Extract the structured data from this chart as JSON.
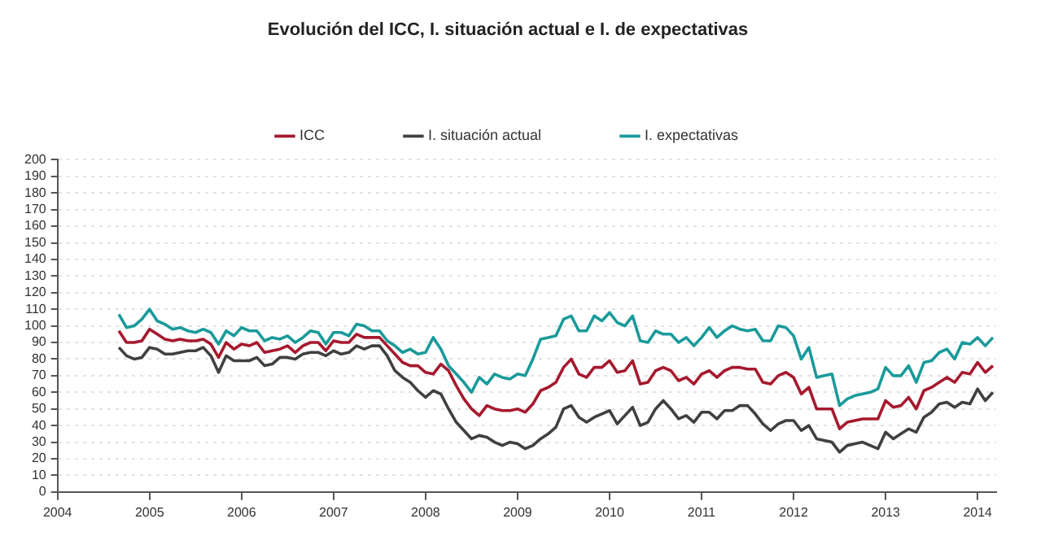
{
  "chart_data": {
    "type": "line",
    "title": "Evolución del ICC, I. situación actual e I. de expectativas",
    "x": [
      "2004-09",
      "2004-10",
      "2004-11",
      "2004-12",
      "2005-01",
      "2005-02",
      "2005-03",
      "2005-04",
      "2005-05",
      "2005-06",
      "2005-07",
      "2005-08",
      "2005-09",
      "2005-10",
      "2005-11",
      "2005-12",
      "2006-01",
      "2006-02",
      "2006-03",
      "2006-04",
      "2006-05",
      "2006-06",
      "2006-07",
      "2006-08",
      "2006-09",
      "2006-10",
      "2006-11",
      "2006-12",
      "2007-01",
      "2007-02",
      "2007-03",
      "2007-04",
      "2007-05",
      "2007-06",
      "2007-07",
      "2007-08",
      "2007-09",
      "2007-10",
      "2007-11",
      "2007-12",
      "2008-01",
      "2008-02",
      "2008-03",
      "2008-04",
      "2008-05",
      "2008-06",
      "2008-07",
      "2008-08",
      "2008-09",
      "2008-10",
      "2008-11",
      "2008-12",
      "2009-01",
      "2009-02",
      "2009-03",
      "2009-04",
      "2009-05",
      "2009-06",
      "2009-07",
      "2009-08",
      "2009-09",
      "2009-10",
      "2009-11",
      "2009-12",
      "2010-01",
      "2010-02",
      "2010-03",
      "2010-04",
      "2010-05",
      "2010-06",
      "2010-07",
      "2010-08",
      "2010-09",
      "2010-10",
      "2010-11",
      "2010-12",
      "2011-01",
      "2011-02",
      "2011-03",
      "2011-04",
      "2011-05",
      "2011-06",
      "2011-07",
      "2011-08",
      "2011-09",
      "2011-10",
      "2011-11",
      "2011-12",
      "2012-01",
      "2012-02",
      "2012-03",
      "2012-04",
      "2012-05",
      "2012-06",
      "2012-07",
      "2012-08",
      "2012-09",
      "2012-10",
      "2012-11",
      "2012-12",
      "2013-01",
      "2013-02",
      "2013-03",
      "2013-04",
      "2013-05",
      "2013-06",
      "2013-07",
      "2013-08",
      "2013-09",
      "2013-10",
      "2013-11",
      "2013-12",
      "2014-01",
      "2014-02",
      "2014-03"
    ],
    "series": [
      {
        "name": "ICC",
        "color": "#a6192e",
        "values": [
          97,
          90,
          90,
          91,
          98,
          95,
          92,
          91,
          92,
          91,
          91,
          92,
          89,
          81,
          90,
          86,
          89,
          88,
          90,
          84,
          85,
          86,
          88,
          84,
          88,
          90,
          90,
          85,
          91,
          90,
          90,
          95,
          93,
          93,
          93,
          88,
          83,
          78,
          76,
          76,
          72,
          71,
          77,
          73,
          64,
          56,
          50,
          46,
          52,
          50,
          49,
          49,
          50,
          48,
          53,
          61,
          63,
          66,
          75,
          80,
          71,
          69,
          75,
          75,
          79,
          72,
          73,
          79,
          65,
          66,
          73,
          75,
          73,
          67,
          69,
          65,
          71,
          73,
          69,
          73,
          75,
          75,
          74,
          74,
          66,
          65,
          70,
          72,
          69,
          59,
          63,
          50,
          50,
          50,
          38,
          42,
          43,
          44,
          44,
          44,
          55,
          51,
          52,
          57,
          50,
          61,
          63,
          66,
          69,
          66,
          72,
          71,
          78,
          72,
          76
        ]
      },
      {
        "name": "I. situación actual",
        "color": "#404040",
        "values": [
          87,
          82,
          80,
          81,
          87,
          86,
          83,
          83,
          84,
          85,
          85,
          87,
          82,
          72,
          82,
          79,
          79,
          79,
          81,
          76,
          77,
          81,
          81,
          80,
          83,
          84,
          84,
          82,
          85,
          83,
          84,
          88,
          86,
          88,
          88,
          82,
          73,
          69,
          66,
          61,
          57,
          61,
          59,
          50,
          42,
          37,
          32,
          34,
          33,
          30,
          28,
          30,
          29,
          26,
          28,
          32,
          35,
          39,
          50,
          52,
          45,
          42,
          45,
          47,
          49,
          41,
          46,
          51,
          40,
          42,
          50,
          55,
          50,
          44,
          46,
          42,
          48,
          48,
          44,
          49,
          49,
          52,
          52,
          47,
          41,
          37,
          41,
          43,
          43,
          37,
          40,
          32,
          31,
          30,
          24,
          28,
          29,
          30,
          28,
          26,
          36,
          32,
          35,
          38,
          36,
          45,
          48,
          53,
          54,
          51,
          54,
          53,
          62,
          55,
          60
        ]
      },
      {
        "name": "I. expectativas",
        "color": "#1a9a9a",
        "values": [
          107,
          99,
          100,
          104,
          110,
          103,
          101,
          98,
          99,
          97,
          96,
          98,
          96,
          89,
          97,
          94,
          99,
          97,
          97,
          91,
          93,
          92,
          94,
          90,
          93,
          97,
          96,
          89,
          96,
          96,
          94,
          101,
          100,
          97,
          97,
          91,
          88,
          84,
          86,
          83,
          84,
          93,
          86,
          76,
          71,
          66,
          60,
          69,
          65,
          71,
          69,
          68,
          71,
          70,
          80,
          92,
          93,
          94,
          104,
          106,
          97,
          97,
          106,
          103,
          108,
          102,
          100,
          106,
          91,
          90,
          97,
          95,
          95,
          90,
          93,
          88,
          93,
          99,
          93,
          97,
          100,
          98,
          97,
          98,
          91,
          91,
          100,
          99,
          94,
          80,
          87,
          69,
          70,
          71,
          52,
          56,
          58,
          59,
          60,
          62,
          75,
          70,
          70,
          76,
          66,
          78,
          79,
          84,
          86,
          80,
          90,
          89,
          93,
          88,
          93
        ]
      }
    ],
    "xlim": [
      "2004-01",
      "2014-03-14"
    ],
    "xticks": [
      {
        "value": "2004-01",
        "label": "2004"
      },
      {
        "value": "2005-01",
        "label": "2005"
      },
      {
        "value": "2006-01",
        "label": "2006"
      },
      {
        "value": "2007-01",
        "label": "2007"
      },
      {
        "value": "2008-01",
        "label": "2008"
      },
      {
        "value": "2009-01",
        "label": "2009"
      },
      {
        "value": "2010-01",
        "label": "2010"
      },
      {
        "value": "2011-01",
        "label": "2011"
      },
      {
        "value": "2012-01",
        "label": "2012"
      },
      {
        "value": "2013-01",
        "label": "2013"
      },
      {
        "value": "2014-01",
        "label": "2014"
      }
    ],
    "ylim": [
      0,
      200
    ],
    "yticks": [
      0,
      10,
      20,
      30,
      40,
      50,
      60,
      70,
      80,
      90,
      100,
      110,
      120,
      130,
      140,
      150,
      160,
      170,
      180,
      190,
      200
    ],
    "grid": "y",
    "legend": "top",
    "marker": "none",
    "line_style": "solid"
  }
}
